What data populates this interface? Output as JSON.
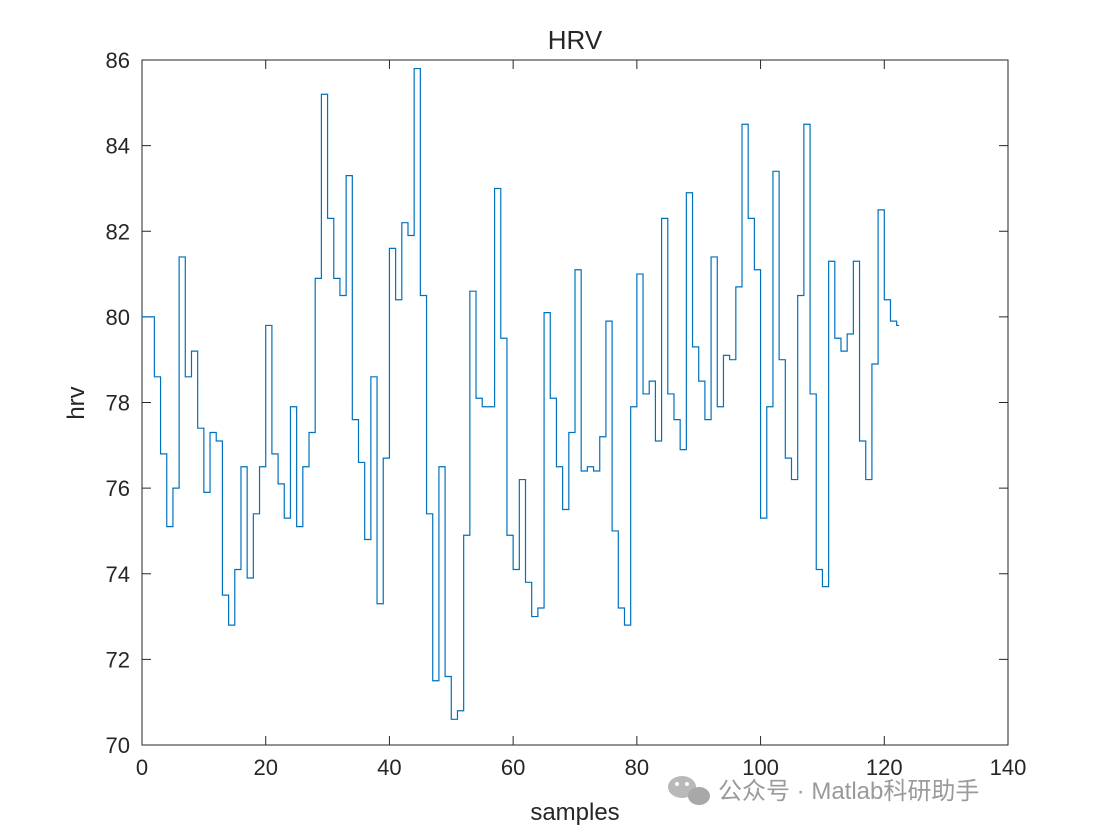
{
  "chart_data": {
    "type": "line",
    "step": true,
    "title": "HRV",
    "xlabel": "samples",
    "ylabel": "hrv",
    "xlim": [
      0,
      140
    ],
    "ylim": [
      70,
      86
    ],
    "xticks": [
      0,
      20,
      40,
      60,
      80,
      100,
      120,
      140
    ],
    "yticks": [
      70,
      72,
      74,
      76,
      78,
      80,
      82,
      84,
      86
    ],
    "grid": false,
    "colors": {
      "series": "#0072bd",
      "axes": "#262626"
    },
    "x": [
      0,
      1,
      2,
      3,
      4,
      5,
      6,
      7,
      8,
      9,
      10,
      11,
      12,
      13,
      14,
      15,
      16,
      17,
      18,
      19,
      20,
      21,
      22,
      23,
      24,
      25,
      26,
      27,
      28,
      29,
      30,
      31,
      32,
      33,
      34,
      35,
      36,
      37,
      38,
      39,
      40,
      41,
      42,
      43,
      44,
      45,
      46,
      47,
      48,
      49,
      50,
      51,
      52,
      53,
      54,
      55,
      56,
      57,
      58,
      59,
      60,
      61,
      62,
      63,
      64,
      65,
      66,
      67,
      68,
      69,
      70,
      71,
      72,
      73,
      74,
      75,
      76,
      77,
      78,
      79,
      80,
      81,
      82,
      83,
      84,
      85,
      86,
      87,
      88,
      89,
      90,
      91,
      92,
      93,
      94,
      95,
      96,
      97,
      98,
      99,
      100,
      101,
      102,
      103,
      104,
      105,
      106,
      107,
      108,
      109,
      110,
      111,
      112,
      113,
      114,
      115,
      116,
      117,
      118,
      119,
      120,
      121,
      122
    ],
    "y": [
      80.0,
      80.0,
      78.6,
      76.8,
      75.1,
      76.0,
      81.4,
      78.6,
      79.2,
      77.4,
      75.9,
      77.3,
      77.1,
      73.5,
      72.8,
      74.1,
      76.5,
      73.9,
      75.4,
      76.5,
      79.8,
      76.8,
      76.1,
      75.3,
      77.9,
      75.1,
      76.5,
      77.3,
      80.9,
      85.2,
      82.3,
      80.9,
      80.5,
      83.3,
      77.6,
      76.6,
      74.8,
      78.6,
      73.3,
      76.7,
      81.6,
      80.4,
      82.2,
      81.9,
      85.8,
      80.5,
      75.4,
      71.5,
      76.5,
      71.6,
      70.6,
      70.8,
      74.9,
      80.6,
      78.1,
      77.9,
      77.9,
      83.0,
      79.5,
      74.9,
      74.1,
      76.2,
      73.8,
      73.0,
      73.2,
      80.1,
      78.1,
      76.5,
      75.5,
      77.3,
      81.1,
      76.4,
      76.5,
      76.4,
      77.2,
      79.9,
      75.0,
      73.2,
      72.8,
      77.9,
      81.0,
      78.2,
      78.5,
      77.1,
      82.3,
      78.2,
      77.6,
      76.9,
      82.9,
      79.3,
      78.5,
      77.6,
      81.4,
      77.9,
      79.1,
      79.0,
      80.7,
      84.5,
      82.3,
      81.1,
      75.3,
      77.9,
      83.4,
      79.0,
      76.7,
      76.2,
      80.5,
      84.5,
      78.2,
      74.1,
      73.7,
      81.3,
      79.5,
      79.2,
      79.6,
      81.3,
      77.1,
      76.2,
      78.9,
      82.5,
      80.4,
      79.9,
      79.8
    ]
  },
  "watermark": {
    "icon": "wechat-icon",
    "text": "公众号 · Matlab科研助手"
  }
}
